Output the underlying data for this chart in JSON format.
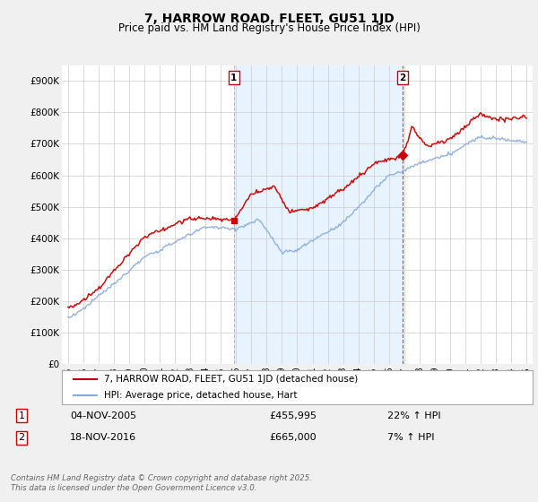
{
  "title": "7, HARROW ROAD, FLEET, GU51 1JD",
  "subtitle": "Price paid vs. HM Land Registry's House Price Index (HPI)",
  "red_label": "7, HARROW ROAD, FLEET, GU51 1JD (detached house)",
  "blue_label": "HPI: Average price, detached house, Hart",
  "footer": "Contains HM Land Registry data © Crown copyright and database right 2025.\nThis data is licensed under the Open Government Licence v3.0.",
  "ylim": [
    0,
    950000
  ],
  "yticks": [
    0,
    100000,
    200000,
    300000,
    400000,
    500000,
    600000,
    700000,
    800000,
    900000
  ],
  "ytick_labels": [
    "£0",
    "£100K",
    "£200K",
    "£300K",
    "£400K",
    "£500K",
    "£600K",
    "£700K",
    "£800K",
    "£900K"
  ],
  "red_color": "#cc0000",
  "blue_color": "#88aadd",
  "shade_color": "#ddeeff",
  "background_color": "#f0f0f0",
  "plot_bg_color": "#ffffff",
  "ann1_x_year": 2005.85,
  "ann2_x_year": 2016.9,
  "ann1_price": 455995,
  "ann2_price": 665000,
  "xlim_left": 1994.6,
  "xlim_right": 2025.4
}
